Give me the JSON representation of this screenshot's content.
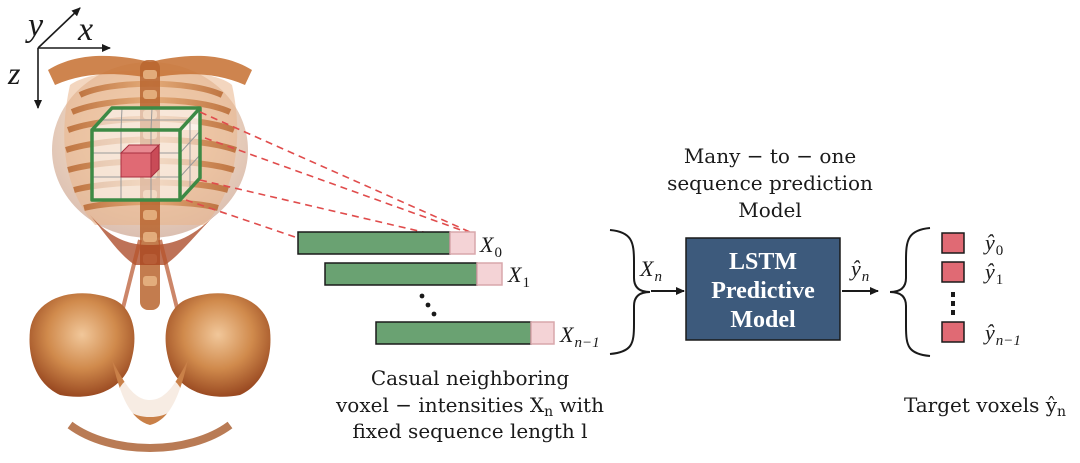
{
  "axes": {
    "x": "x",
    "y": "y",
    "z": "z"
  },
  "sequences": [
    {
      "base": "X",
      "sub": "0"
    },
    {
      "base": "X",
      "sub": "1"
    },
    {
      "base": "X",
      "sub": "n−1"
    }
  ],
  "input": {
    "base": "X",
    "sub": "n"
  },
  "caption_left": {
    "line1": "Casual neighboring",
    "line2_prefix": "voxel − intensities X",
    "line2_sub": "n",
    "line2_suffix": " with",
    "line3": "fixed sequence length l"
  },
  "model_caption": {
    "line1": "Many − to − one",
    "line2": "sequence prediction",
    "line3": "Model"
  },
  "model_box": {
    "line1": "LSTM",
    "line2": "Predictive",
    "line3": "Model"
  },
  "output_arrow": {
    "base": "ŷ",
    "sub": "n"
  },
  "targets": [
    {
      "base": "ŷ",
      "sub": "0"
    },
    {
      "base": "ŷ",
      "sub": "1"
    },
    {
      "base": "ŷ",
      "sub": "n−1"
    }
  ],
  "caption_right": {
    "prefix": "Target voxels ŷ",
    "sub": "n"
  },
  "colors": {
    "model_fill": "#3d5a7c",
    "bar_green": "#6aa272",
    "bar_pink": "#f4d3d6",
    "target_red": "#e06a74",
    "dashed_red": "#e04c4c",
    "cube_green": "#3d8a45",
    "anatomy": "#c27a3e"
  }
}
